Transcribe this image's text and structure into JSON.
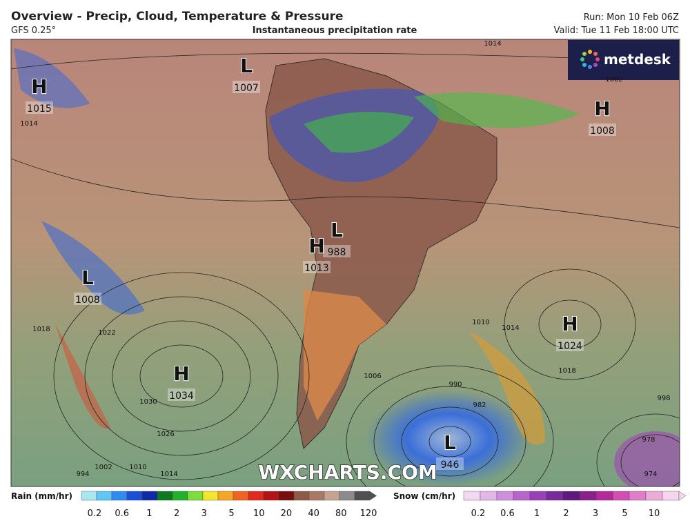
{
  "header": {
    "title": "Overview - Precip, Cloud, Temperature & Pressure",
    "model": "GFS 0.25°",
    "subtitle": "Instantaneous precipitation rate",
    "run": "Run: Mon 10 Feb 06Z",
    "valid": "Valid: Tue 11 Feb 18:00 UTC"
  },
  "logo": "metdesk",
  "pressure_centers": [
    {
      "type": "H",
      "value": "1015"
    },
    {
      "type": "L",
      "value": "1007"
    },
    {
      "type": "H",
      "value": "1008"
    },
    {
      "type": "L",
      "value": "988"
    },
    {
      "type": "H",
      "value": "1013"
    },
    {
      "type": "L",
      "value": "1008"
    },
    {
      "type": "H",
      "value": "1024"
    },
    {
      "type": "H",
      "value": "1034"
    },
    {
      "type": "L",
      "value": "946"
    }
  ],
  "isobar_labels": [
    "1014",
    "1014",
    "1002",
    "1022",
    "1018",
    "1010",
    "1014",
    "1018",
    "990",
    "998",
    "1006",
    "1030",
    "1026",
    "1014",
    "1010",
    "1002",
    "994",
    "982",
    "978",
    "974"
  ],
  "watermark": "WXCHARTS.COM",
  "legend": {
    "rain": {
      "label": "Rain (mm/hr)",
      "ticks": [
        "0.2",
        "0.6",
        "1",
        "2",
        "3",
        "5",
        "10",
        "20",
        "40",
        "80",
        "120"
      ]
    },
    "snow": {
      "label": "Snow (cm/hr)",
      "ticks": [
        "0.2",
        "0.6",
        "1",
        "2",
        "3",
        "5",
        "10"
      ]
    }
  }
}
